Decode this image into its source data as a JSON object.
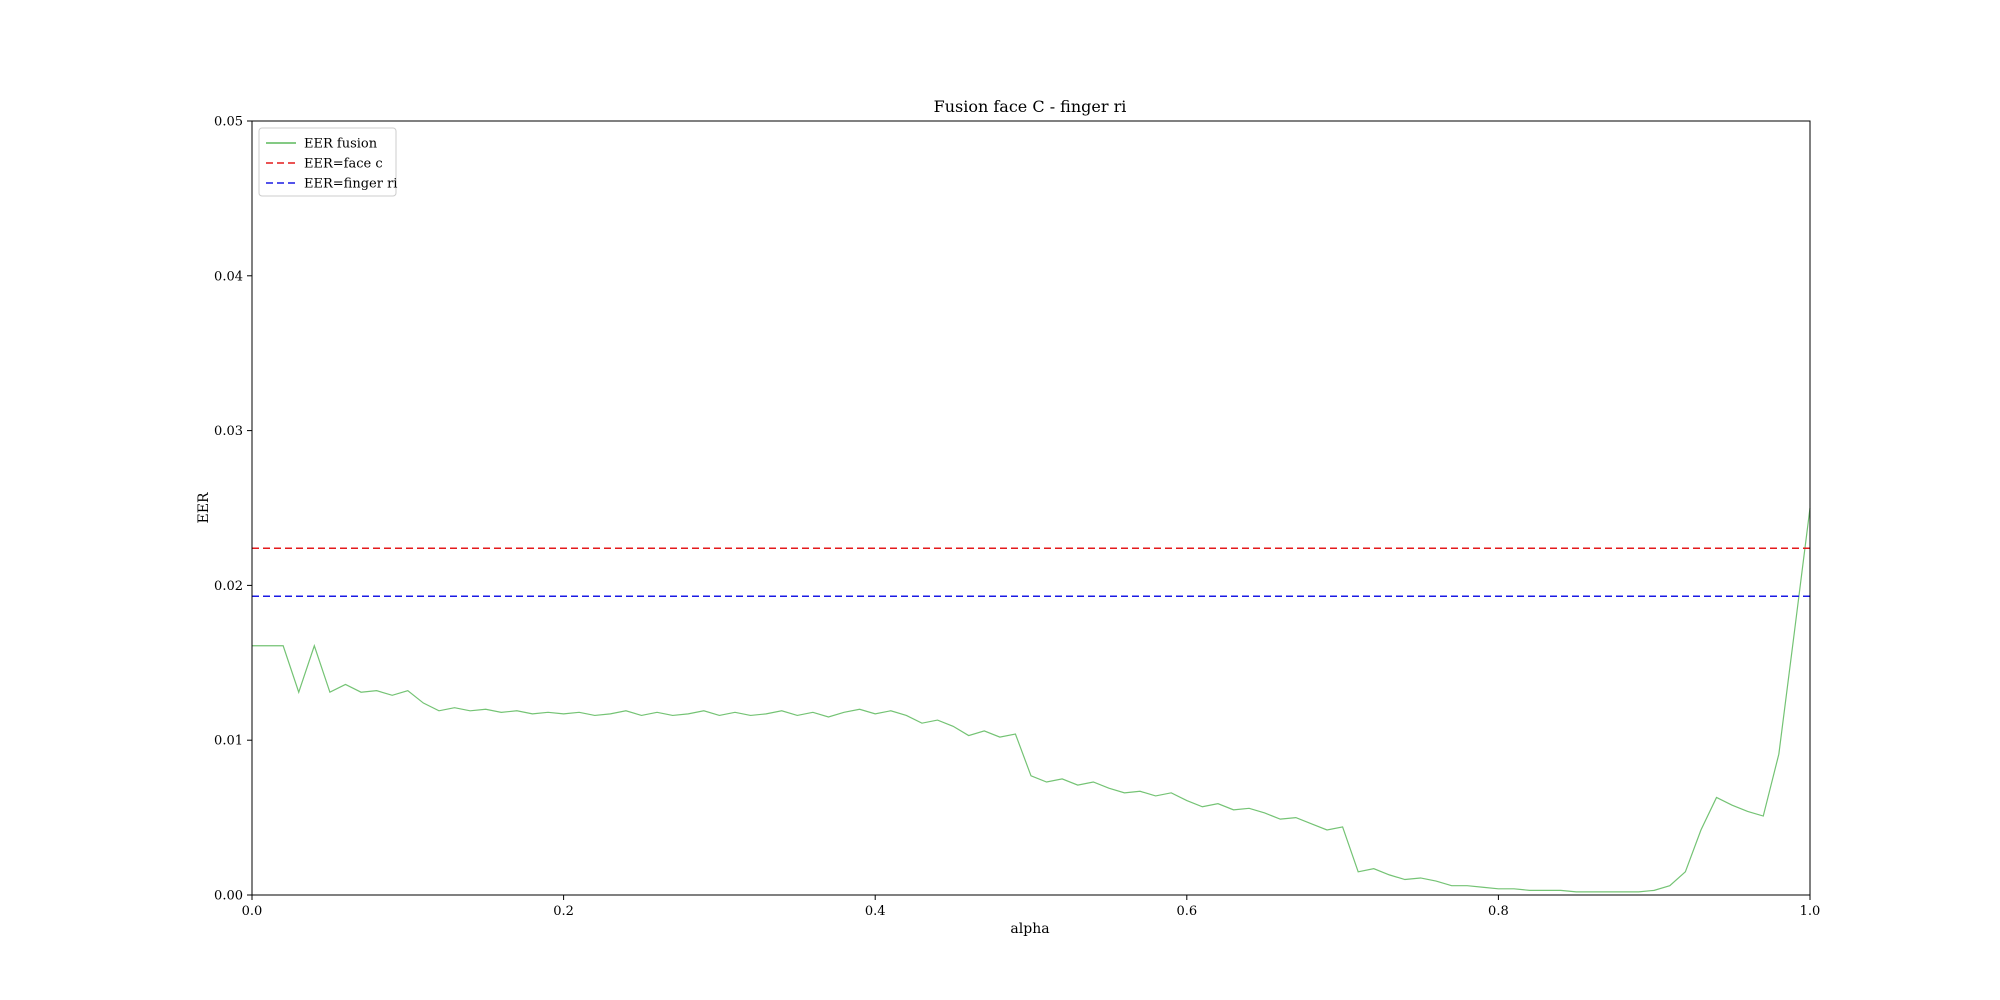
{
  "chart_data": {
    "type": "line",
    "title": "Fusion face C - finger ri",
    "xlabel": "alpha",
    "ylabel": "EER",
    "xlim": [
      0.0,
      1.0
    ],
    "ylim": [
      0.0,
      0.05
    ],
    "xticks": [
      0.0,
      0.2,
      0.4,
      0.6,
      0.8,
      1.0
    ],
    "xtick_labels": [
      "0.0",
      "0.2",
      "0.4",
      "0.6",
      "0.8",
      "1.0"
    ],
    "yticks": [
      0.0,
      0.01,
      0.02,
      0.03,
      0.04,
      0.05
    ],
    "ytick_labels": [
      "0.00",
      "0.01",
      "0.02",
      "0.03",
      "0.04",
      "0.05"
    ],
    "grid": false,
    "legend_position": "top-left",
    "series": [
      {
        "name": "EER fusion",
        "color": "#5cb85c",
        "style": "solid",
        "x": [
          0.0,
          0.01,
          0.02,
          0.03,
          0.04,
          0.05,
          0.06,
          0.07,
          0.08,
          0.09,
          0.1,
          0.11,
          0.12,
          0.13,
          0.14,
          0.15,
          0.16,
          0.17,
          0.18,
          0.19,
          0.2,
          0.21,
          0.22,
          0.23,
          0.24,
          0.25,
          0.26,
          0.27,
          0.28,
          0.29,
          0.3,
          0.31,
          0.32,
          0.33,
          0.34,
          0.35,
          0.36,
          0.37,
          0.38,
          0.39,
          0.4,
          0.41,
          0.42,
          0.43,
          0.44,
          0.45,
          0.46,
          0.47,
          0.48,
          0.49,
          0.5,
          0.51,
          0.52,
          0.53,
          0.54,
          0.55,
          0.56,
          0.57,
          0.58,
          0.59,
          0.6,
          0.61,
          0.62,
          0.63,
          0.64,
          0.65,
          0.66,
          0.67,
          0.68,
          0.69,
          0.7,
          0.71,
          0.72,
          0.73,
          0.74,
          0.75,
          0.76,
          0.77,
          0.78,
          0.79,
          0.8,
          0.81,
          0.82,
          0.83,
          0.84,
          0.85,
          0.86,
          0.87,
          0.88,
          0.89,
          0.9,
          0.91,
          0.92,
          0.93,
          0.94,
          0.95,
          0.96,
          0.97,
          0.98,
          0.99,
          1.0
        ],
        "y": [
          0.0161,
          0.0161,
          0.0161,
          0.0131,
          0.0161,
          0.0131,
          0.0136,
          0.0131,
          0.0132,
          0.0129,
          0.0132,
          0.0124,
          0.0119,
          0.0121,
          0.0119,
          0.012,
          0.0118,
          0.0119,
          0.0117,
          0.0118,
          0.0117,
          0.0118,
          0.0116,
          0.0117,
          0.0119,
          0.0116,
          0.0118,
          0.0116,
          0.0117,
          0.0119,
          0.0116,
          0.0118,
          0.0116,
          0.0117,
          0.0119,
          0.0116,
          0.0118,
          0.0115,
          0.0118,
          0.012,
          0.0117,
          0.0119,
          0.0116,
          0.0111,
          0.0113,
          0.0109,
          0.0103,
          0.0106,
          0.0102,
          0.0104,
          0.0077,
          0.0073,
          0.0075,
          0.0071,
          0.0073,
          0.0069,
          0.0066,
          0.0067,
          0.0064,
          0.0066,
          0.0061,
          0.0057,
          0.0059,
          0.0055,
          0.0056,
          0.0053,
          0.0049,
          0.005,
          0.0046,
          0.0042,
          0.0044,
          0.0015,
          0.0017,
          0.0013,
          0.001,
          0.0011,
          0.0009,
          0.0006,
          0.0006,
          0.0005,
          0.0004,
          0.0004,
          0.0003,
          0.0003,
          0.0003,
          0.0002,
          0.0002,
          0.0002,
          0.0002,
          0.0002,
          0.0003,
          0.0006,
          0.0015,
          0.0042,
          0.0063,
          0.0058,
          0.0054,
          0.0051,
          0.0091,
          0.017,
          0.025
        ]
      },
      {
        "name": "EER=face c",
        "color": "#e41a1c",
        "style": "dashed",
        "x": [
          0.0,
          1.0
        ],
        "y": [
          0.0224,
          0.0224
        ]
      },
      {
        "name": "EER=finger ri",
        "color": "#1a1ae4",
        "style": "dashed",
        "x": [
          0.0,
          1.0
        ],
        "y": [
          0.0193,
          0.0193
        ]
      }
    ]
  }
}
